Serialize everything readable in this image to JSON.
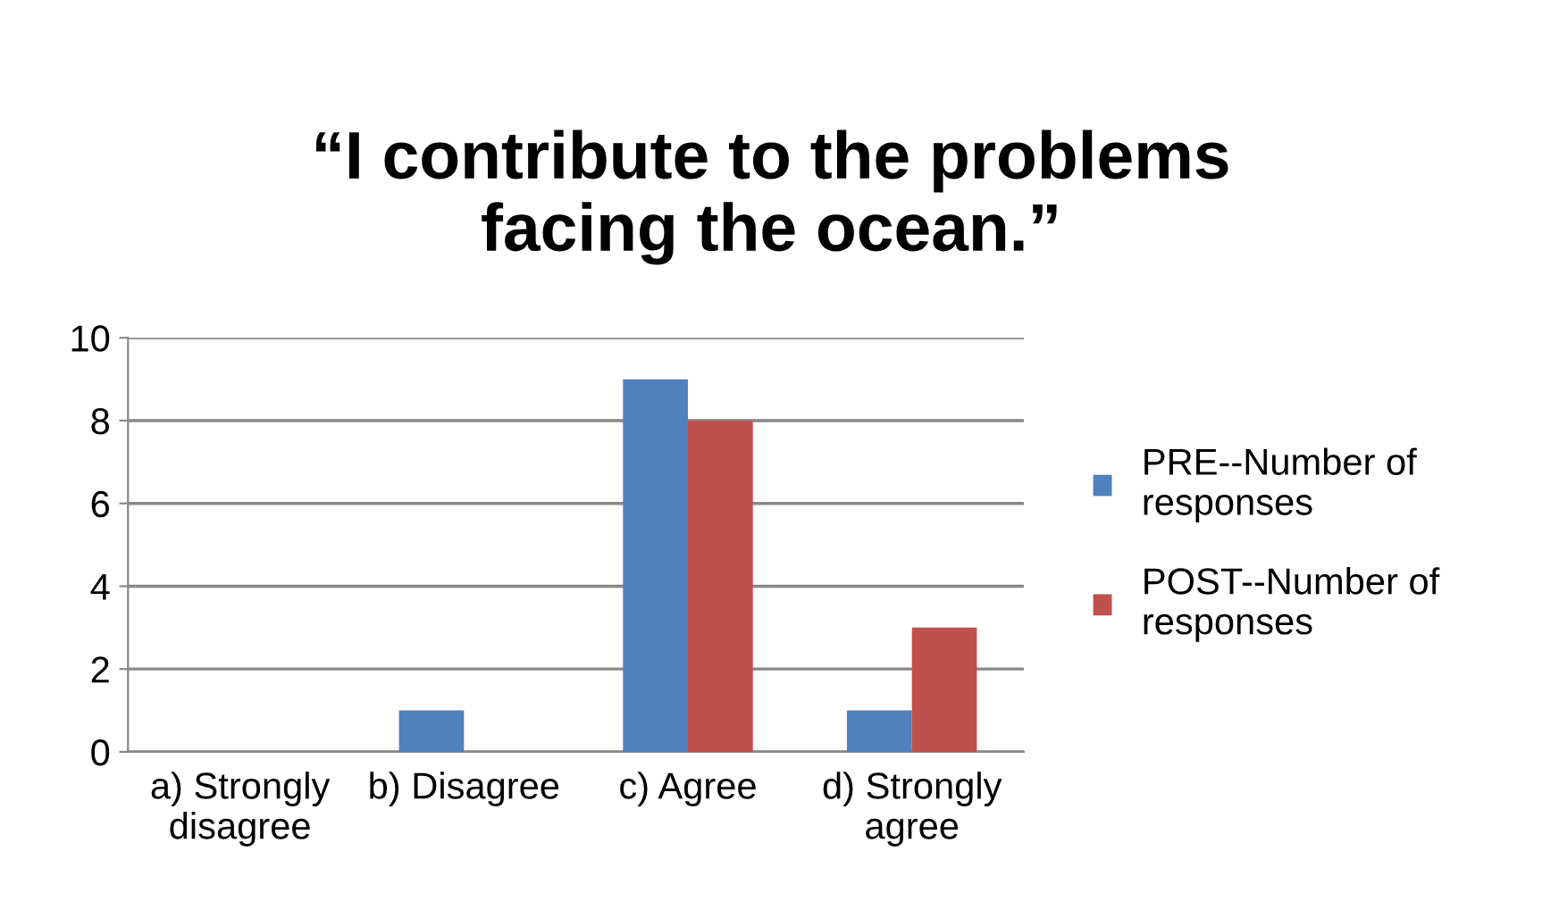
{
  "chart_data": {
    "type": "bar",
    "title": "“I contribute to the problems\nfacing the ocean.”",
    "categories": [
      "a) Strongly\ndisagree",
      "b) Disagree",
      "c) Agree",
      "d) Strongly\nagree"
    ],
    "series": [
      {
        "name": "PRE--Number of\nresponses",
        "color": "#4f81bd",
        "values": [
          0,
          1,
          9,
          1
        ]
      },
      {
        "name": "POST--Number of\nresponses",
        "color": "#c0504d",
        "values": [
          0,
          0,
          8,
          3
        ]
      }
    ],
    "ylim": [
      0,
      10
    ],
    "yticks": [
      0,
      2,
      4,
      6,
      8,
      10
    ],
    "grid": "y",
    "legend": "right"
  }
}
